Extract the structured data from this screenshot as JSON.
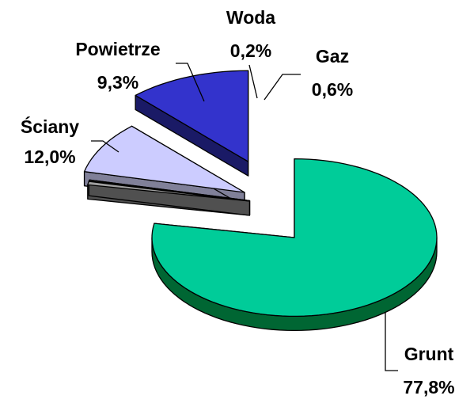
{
  "chart_data": {
    "type": "pie",
    "style": "3d-exploded",
    "categories": [
      "Grunt",
      "Gaz",
      "Woda",
      "Powietrze",
      "Ściany"
    ],
    "values": [
      77.8,
      0.6,
      0.2,
      9.3,
      12.0
    ],
    "value_labels": [
      "77,8%",
      "0,6%",
      "0,2%",
      "9,3%",
      "12,0%"
    ],
    "colors": {
      "top": [
        "#00cc99",
        "#a0a0a0",
        "#ffffff",
        "#ccccff",
        "#3333cc"
      ],
      "side": [
        "#006633",
        "#505050",
        "#999999",
        "#808099",
        "#1a1a66"
      ]
    },
    "legend": "none"
  }
}
